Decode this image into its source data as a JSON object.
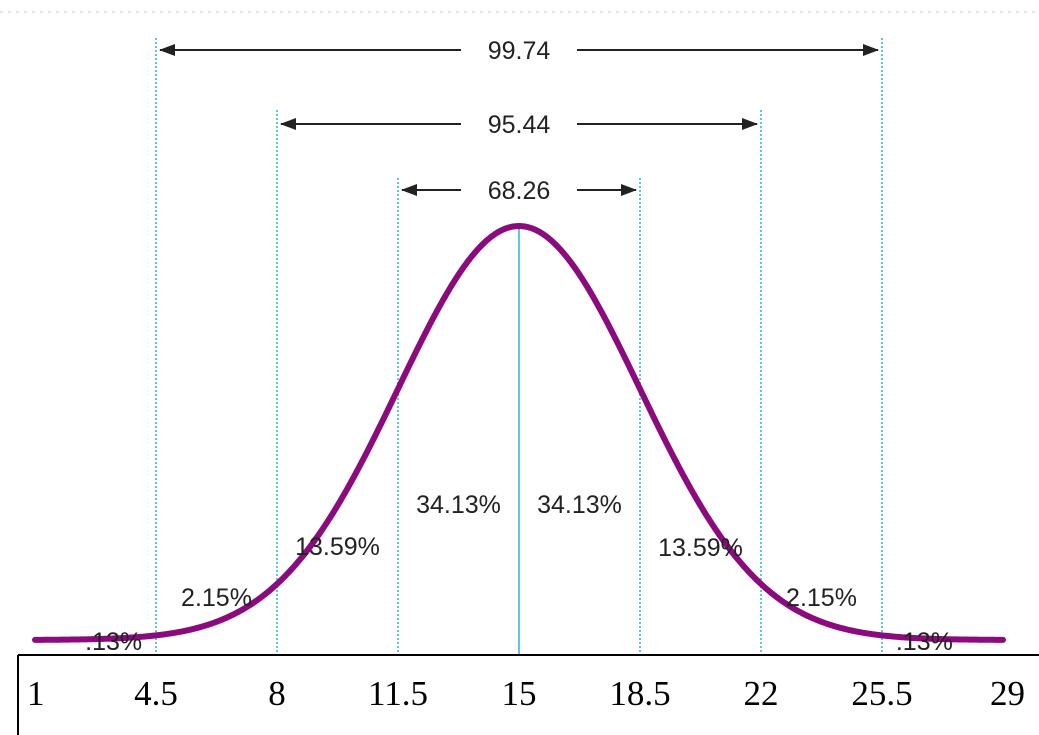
{
  "chart_data": {
    "type": "line",
    "title": "",
    "xlabel": "",
    "ylabel": "",
    "mean": 15,
    "sd": 3.5,
    "xlim": [
      1,
      29
    ],
    "x_ticks": [
      "1",
      "4.5",
      "8",
      "11.5",
      "15",
      "18.5",
      "22",
      "25.5",
      "29"
    ],
    "sd_lines": [
      4.5,
      8,
      11.5,
      15,
      18.5,
      22,
      25.5
    ],
    "regions": [
      {
        "label": ".13%",
        "value": 0.13,
        "from": 1,
        "to": 4.5
      },
      {
        "label": "2.15%",
        "value": 2.15,
        "from": 4.5,
        "to": 8
      },
      {
        "label": "13.59%",
        "value": 13.59,
        "from": 8,
        "to": 11.5
      },
      {
        "label": "34.13%",
        "value": 34.13,
        "from": 11.5,
        "to": 15
      },
      {
        "label": "34.13%",
        "value": 34.13,
        "from": 15,
        "to": 18.5
      },
      {
        "label": "13.59%",
        "value": 13.59,
        "from": 18.5,
        "to": 22
      },
      {
        "label": "2.15%",
        "value": 2.15,
        "from": 22,
        "to": 25.5
      },
      {
        "label": ".13%",
        "value": 0.13,
        "from": 25.5,
        "to": 29
      }
    ],
    "spans": [
      {
        "label": "99.74",
        "from": 4.5,
        "to": 25.5
      },
      {
        "label": "95.44",
        "from": 8,
        "to": 22
      },
      {
        "label": "68.26",
        "from": 11.5,
        "to": 18.5
      }
    ],
    "grid": false,
    "legend": "none",
    "colors": {
      "curve": "#8b0a7e",
      "guides": "#5bc8e0",
      "text": "#222222"
    }
  }
}
